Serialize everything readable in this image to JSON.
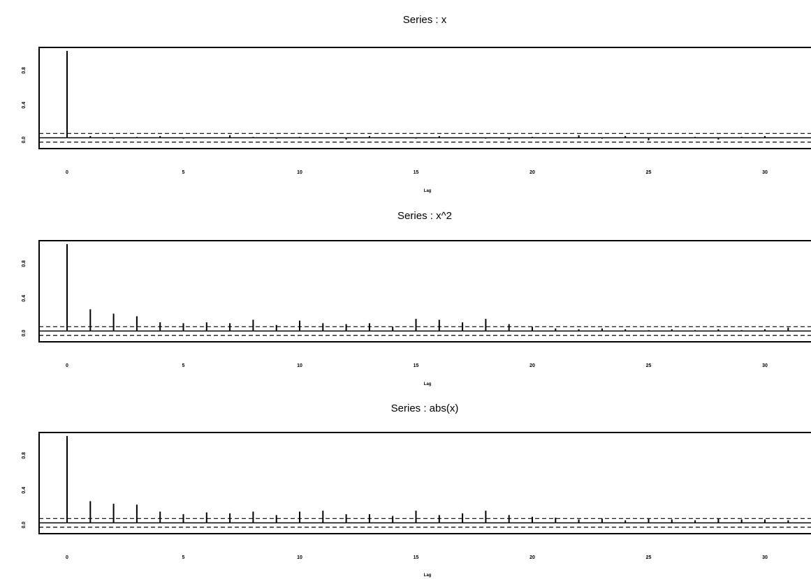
{
  "chart_data": [
    {
      "type": "bar",
      "title": "Series : x",
      "xlabel": "Lag",
      "ylabel": "",
      "lags": [
        0,
        1,
        2,
        3,
        4,
        5,
        6,
        7,
        8,
        9,
        10,
        11,
        12,
        13,
        14,
        15,
        16,
        17,
        18,
        19,
        20,
        21,
        22,
        23,
        24,
        25,
        26,
        27,
        28,
        29,
        30,
        31
      ],
      "values": [
        1.0,
        0.02,
        -0.01,
        0.01,
        0.02,
        -0.01,
        0.0,
        0.03,
        0.01,
        -0.01,
        0.01,
        0.0,
        -0.02,
        0.02,
        0.0,
        -0.01,
        0.02,
        0.0,
        -0.01,
        -0.02,
        0.01,
        0.0,
        0.03,
        -0.01,
        0.02,
        -0.03,
        0.0,
        0.01,
        -0.02,
        0.01,
        0.02,
        0.0
      ],
      "conf_band": 0.05,
      "ylim": [
        -0.1,
        1.0
      ],
      "x_ticks": [
        0,
        5,
        10,
        15,
        20,
        25,
        30
      ],
      "y_ticks": [
        0.0,
        0.4,
        0.8
      ],
      "annotation": "",
      "grid": false
    },
    {
      "type": "bar",
      "title": "Series : x^2",
      "xlabel": "Lag",
      "ylabel": "",
      "lags": [
        0,
        1,
        2,
        3,
        4,
        5,
        6,
        7,
        8,
        9,
        10,
        11,
        12,
        13,
        14,
        15,
        16,
        17,
        18,
        19,
        20,
        21,
        22,
        23,
        24,
        25,
        26,
        27,
        28,
        29,
        30,
        31
      ],
      "values": [
        1.0,
        0.25,
        0.2,
        0.17,
        0.1,
        0.09,
        0.1,
        0.09,
        0.13,
        0.07,
        0.12,
        0.09,
        0.08,
        0.09,
        0.05,
        0.14,
        0.13,
        0.1,
        0.14,
        0.08,
        0.05,
        0.03,
        0.02,
        0.03,
        0.02,
        0.01,
        0.02,
        0.01,
        0.02,
        0.01,
        0.02,
        0.04
      ],
      "conf_band": 0.05,
      "ylim": [
        -0.1,
        1.0
      ],
      "x_ticks": [
        0,
        5,
        10,
        15,
        20,
        25,
        30
      ],
      "y_ticks": [
        0.0,
        0.4,
        0.8
      ],
      "grid": false
    },
    {
      "type": "bar",
      "title": "Series : abs(x)",
      "xlabel": "Lag",
      "ylabel": "",
      "lags": [
        0,
        1,
        2,
        3,
        4,
        5,
        6,
        7,
        8,
        9,
        10,
        11,
        12,
        13,
        14,
        15,
        16,
        17,
        18,
        19,
        20,
        21,
        22,
        23,
        24,
        25,
        26,
        27,
        28,
        29,
        30,
        31
      ],
      "values": [
        1.0,
        0.25,
        0.22,
        0.21,
        0.13,
        0.1,
        0.12,
        0.11,
        0.13,
        0.09,
        0.13,
        0.14,
        0.1,
        0.1,
        0.08,
        0.14,
        0.09,
        0.11,
        0.14,
        0.09,
        0.07,
        0.06,
        0.04,
        0.05,
        0.03,
        0.05,
        0.04,
        0.03,
        0.05,
        0.04,
        0.04,
        0.03
      ],
      "conf_band": 0.05,
      "ylim": [
        -0.1,
        1.0
      ],
      "x_ticks": [
        0,
        5,
        10,
        15,
        20,
        25,
        30
      ],
      "y_ticks": [
        0.0,
        0.4,
        0.8
      ],
      "grid": false
    }
  ]
}
